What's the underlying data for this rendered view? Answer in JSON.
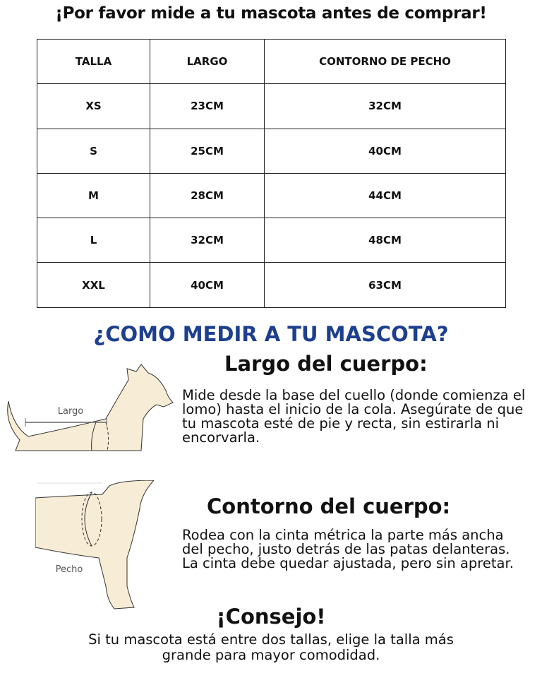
{
  "title": "¡Por favor mide a tu mascota antes de comprar!",
  "table": {
    "headers": [
      "TALLA",
      "LARGO",
      "CONTORNO DE PECHO"
    ],
    "rows": [
      [
        "XS",
        "23CM",
        "32CM"
      ],
      [
        "S",
        "25CM",
        "40CM"
      ],
      [
        "M",
        "28CM",
        "44CM"
      ],
      [
        "L",
        "32CM",
        "48CM"
      ],
      [
        "XXL",
        "40CM",
        "63CM"
      ]
    ]
  },
  "how_title": "¿COMO MEDIR A TU MASCOTA?",
  "largo": {
    "heading": "Largo del cuerpo:",
    "text": "Mide desde la base del cuello (donde comienza el lomo) hasta el inicio de la cola. Asegúrate de que tu mascota esté de pie y recta, sin estirarla ni encorvarla.",
    "diagram_label": "Largo"
  },
  "contorno": {
    "heading": "Contorno del cuerpo:",
    "text": "Rodea con la cinta métrica la parte más ancha del pecho, justo detrás de las patas delanteras. La cinta debe quedar ajustada, pero sin apretar.",
    "diagram_label": "Pecho"
  },
  "tip": {
    "heading": "¡Consejo!",
    "text": "Si tu mascota está entre dos tallas, elige la talla más grande para mayor comodidad."
  },
  "colors": {
    "accent": "#1d3f8f",
    "dog_fill": "#f7ecd5"
  }
}
